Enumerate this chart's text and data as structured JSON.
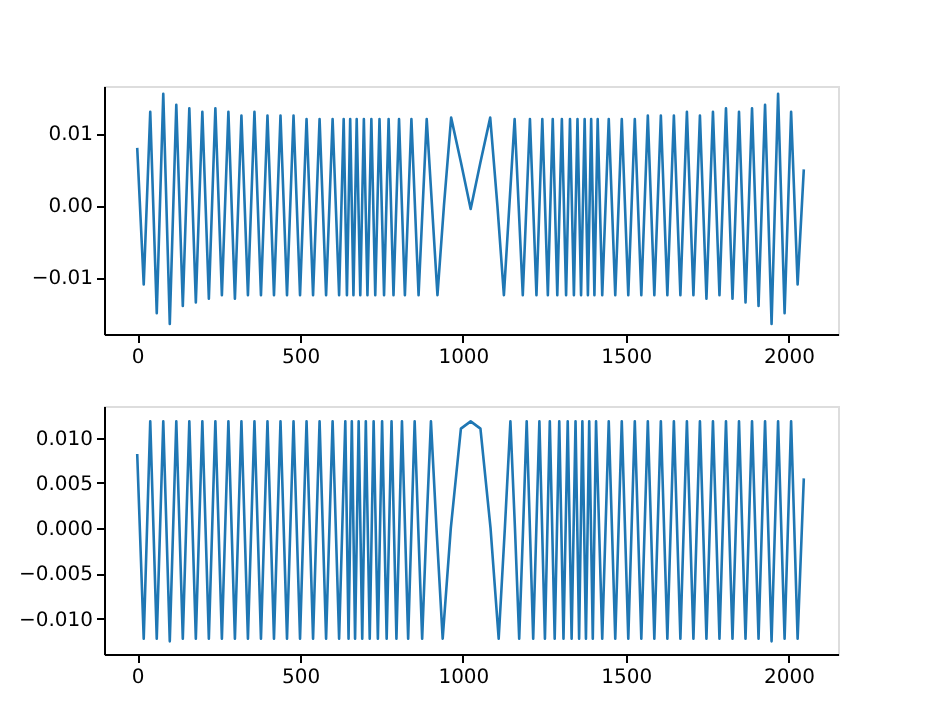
{
  "chart_data": [
    {
      "type": "line",
      "grid": false,
      "xlim": [
        -102,
        2152
      ],
      "xticks": [
        0,
        500,
        1000,
        1500,
        2000
      ],
      "ylim": [
        -0.0179,
        0.0166
      ],
      "yticks": [
        {
          "value": -0.01,
          "label": "−0.01"
        },
        {
          "value": 0,
          "label": "0.00"
        },
        {
          "value": 0.01,
          "label": "0.01"
        }
      ],
      "series": [
        {
          "color": "#1f77b4",
          "x": [
            0,
            20,
            40,
            60,
            80,
            100,
            120,
            140,
            160,
            180,
            200,
            220,
            240,
            260,
            280,
            300,
            320,
            340,
            360,
            380,
            400,
            420,
            440,
            460,
            480,
            500,
            520,
            540,
            560,
            580,
            600,
            620,
            634,
            644,
            654,
            664,
            674,
            685,
            696,
            707,
            719,
            731,
            744,
            758,
            772,
            787,
            804,
            822,
            842,
            864,
            889,
            922,
            942,
            964,
            994,
            1024,
            1054,
            1084,
            1106,
            1126,
            1159,
            1184,
            1206,
            1226,
            1244,
            1261,
            1276,
            1290,
            1304,
            1317,
            1329,
            1341,
            1352,
            1363,
            1374,
            1384,
            1394,
            1404,
            1414,
            1428,
            1448,
            1468,
            1488,
            1508,
            1528,
            1548,
            1568,
            1588,
            1608,
            1628,
            1648,
            1668,
            1688,
            1708,
            1728,
            1748,
            1768,
            1788,
            1808,
            1828,
            1848,
            1868,
            1888,
            1908,
            1928,
            1948,
            1968,
            1988,
            2008,
            2028,
            2047
          ],
          "values": [
            0.008,
            -0.011,
            0.013,
            -0.015,
            0.0155,
            -0.0165,
            0.014,
            -0.014,
            0.0135,
            -0.0135,
            0.013,
            -0.013,
            0.0135,
            -0.0125,
            0.013,
            -0.013,
            0.0125,
            -0.0125,
            0.013,
            -0.0125,
            0.0125,
            -0.0125,
            0.0125,
            -0.0125,
            0.0125,
            -0.0125,
            0.012,
            -0.0125,
            0.012,
            -0.0125,
            0.012,
            -0.0125,
            0.012,
            -0.0125,
            0.012,
            -0.0125,
            0.012,
            -0.0125,
            0.012,
            -0.0125,
            0.012,
            -0.0125,
            0.012,
            -0.0125,
            0.012,
            -0.0125,
            0.012,
            -0.0125,
            0.012,
            -0.0125,
            0.012,
            -0.0125,
            0,
            0.0122,
            0.006,
            -0.0005,
            0.006,
            0.0122,
            0,
            -0.0125,
            0.012,
            -0.0125,
            0.012,
            -0.0125,
            0.012,
            -0.0125,
            0.012,
            -0.0125,
            0.012,
            -0.0125,
            0.012,
            -0.0125,
            0.012,
            -0.0125,
            0.012,
            -0.0125,
            0.012,
            -0.0125,
            0.012,
            -0.0125,
            0.012,
            -0.0125,
            0.012,
            -0.0125,
            0.012,
            -0.0125,
            0.0125,
            -0.0125,
            0.0125,
            -0.0125,
            0.0125,
            -0.0125,
            0.013,
            -0.0125,
            0.0125,
            -0.013,
            0.013,
            -0.0125,
            0.0135,
            -0.013,
            0.013,
            -0.0135,
            0.0135,
            -0.014,
            0.014,
            -0.0165,
            0.0155,
            -0.015,
            0.013,
            -0.011,
            0.005
          ]
        }
      ]
    },
    {
      "type": "line",
      "grid": false,
      "xlim": [
        -102,
        2152
      ],
      "xticks": [
        0,
        500,
        1000,
        1500,
        2000
      ],
      "ylim": [
        -0.0139,
        0.0135
      ],
      "yticks": [
        {
          "value": -0.01,
          "label": "−0.010"
        },
        {
          "value": -0.005,
          "label": "−0.005"
        },
        {
          "value": 0,
          "label": "0.000"
        },
        {
          "value": 0.005,
          "label": "0.005"
        },
        {
          "value": 0.01,
          "label": "0.010"
        }
      ],
      "series": [
        {
          "color": "#1f77b4",
          "x": [
            0,
            20,
            40,
            60,
            80,
            100,
            120,
            140,
            160,
            180,
            200,
            220,
            240,
            260,
            280,
            300,
            320,
            340,
            360,
            380,
            400,
            420,
            440,
            460,
            480,
            500,
            520,
            540,
            560,
            580,
            600,
            620,
            639,
            649,
            659,
            669,
            680,
            691,
            702,
            714,
            726,
            739,
            752,
            766,
            781,
            796,
            813,
            832,
            852,
            863,
            875,
            888,
            902,
            919,
            938,
            963,
            994,
            1024,
            1054,
            1085,
            1110,
            1129,
            1146,
            1160,
            1173,
            1185,
            1196,
            1216,
            1235,
            1252,
            1267,
            1282,
            1296,
            1309,
            1322,
            1334,
            1346,
            1357,
            1367,
            1378,
            1388,
            1399,
            1409,
            1428,
            1448,
            1468,
            1488,
            1508,
            1528,
            1548,
            1568,
            1588,
            1608,
            1628,
            1648,
            1668,
            1688,
            1708,
            1728,
            1748,
            1768,
            1788,
            1808,
            1828,
            1848,
            1868,
            1888,
            1908,
            1928,
            1948,
            1968,
            1988,
            2008,
            2028,
            2047
          ],
          "values": [
            0.0082,
            -0.0122,
            0.0118,
            -0.0122,
            0.0118,
            -0.0125,
            0.0118,
            -0.0122,
            0.0118,
            -0.0122,
            0.0118,
            -0.0122,
            0.0118,
            -0.0122,
            0.0118,
            -0.0122,
            0.0118,
            -0.0122,
            0.0118,
            -0.0122,
            0.0118,
            -0.0122,
            0.0118,
            -0.0122,
            0.0118,
            -0.0122,
            0.0118,
            -0.0122,
            0.0118,
            -0.0122,
            0.0118,
            -0.0122,
            0.0118,
            -0.0122,
            0.0118,
            -0.0122,
            0.0118,
            -0.0122,
            0.0118,
            -0.0122,
            0.0118,
            -0.0122,
            0.0118,
            -0.0122,
            0.0118,
            -0.0122,
            0.0118,
            -0.0122,
            0.0118,
            0,
            -0.0122,
            0,
            0.0118,
            0,
            -0.0122,
            0,
            0.011,
            0.0118,
            0.011,
            0,
            -0.0122,
            0,
            0.0118,
            0,
            -0.0122,
            0,
            0.0118,
            -0.0122,
            0.0118,
            -0.0122,
            0.0118,
            -0.0122,
            0.0118,
            -0.0122,
            0.0118,
            -0.0122,
            0.0118,
            -0.0122,
            0.0118,
            -0.0122,
            0.0118,
            -0.0122,
            0.0118,
            -0.0122,
            0.0118,
            -0.0122,
            0.0118,
            -0.0122,
            0.0118,
            -0.0122,
            0.0118,
            -0.0122,
            0.0118,
            -0.0122,
            0.0118,
            -0.0122,
            0.0118,
            -0.0122,
            0.0118,
            -0.0122,
            0.0118,
            -0.0122,
            0.0118,
            -0.0122,
            0.0118,
            -0.0122,
            0.0118,
            -0.0122,
            0.0118,
            -0.0125,
            0.0118,
            -0.0122,
            0.0118,
            -0.0122,
            0.0055
          ]
        }
      ]
    }
  ]
}
